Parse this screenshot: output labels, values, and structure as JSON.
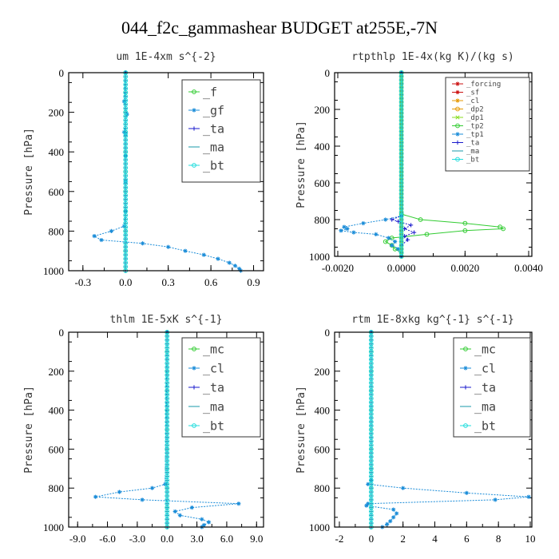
{
  "suptitle": "044_f2c_gammashear  BUDGET at255E,-7N",
  "colors": {
    "green": "#33cc33",
    "blue": "#1a8cd8",
    "red": "#cc1111",
    "darkblue": "#1a1acc",
    "cyan": "#22dddd",
    "teal": "#1a9aaa",
    "orange": "#e69900",
    "lime": "#88dd22"
  },
  "chart_data": [
    {
      "type": "line",
      "title": "um   1E-4xm s^{-2}",
      "xlabel": "",
      "ylabel": "Pressure [hPa]",
      "xlim": [
        -0.4,
        0.97
      ],
      "ylim": [
        1000,
        0
      ],
      "xticks": [
        -0.3,
        0.0,
        0.3,
        0.6,
        0.9
      ],
      "xtick_labels": [
        "-0.3",
        "0.0",
        "0.3",
        "0.6",
        "0.9"
      ],
      "yticks": [
        0,
        200,
        400,
        600,
        800,
        1000
      ],
      "ytick_labels": [
        "0",
        "200",
        "400",
        "600",
        "800",
        "1000"
      ],
      "legend": {
        "placement": "top-right",
        "font": 15,
        "entries": [
          "_f",
          "_gf",
          "_ta",
          "_ma",
          "_bt"
        ]
      },
      "series": [
        {
          "name": "_f",
          "color": "green",
          "marker": "o",
          "p": [
            0,
            100,
            200,
            300,
            400,
            500,
            600,
            700,
            800,
            900,
            1000
          ],
          "x": [
            0,
            0,
            0,
            0,
            0,
            0,
            0,
            0,
            0,
            0,
            0
          ]
        },
        {
          "name": "_gf",
          "color": "blue",
          "marker": "*",
          "p": [
            0,
            145,
            210,
            300,
            310,
            420,
            550,
            700,
            775,
            800,
            825,
            845,
            862,
            880,
            900,
            920,
            940,
            960,
            975,
            990,
            1000
          ],
          "x": [
            0,
            -0.01,
            0.01,
            -0.01,
            0,
            0,
            0,
            0,
            -0.01,
            -0.1,
            -0.22,
            -0.17,
            0.12,
            0.3,
            0.42,
            0.55,
            0.65,
            0.73,
            0.77,
            0.8,
            0.81
          ]
        },
        {
          "name": "_ta",
          "color": "darkblue",
          "marker": "+",
          "p": [
            0,
            500,
            1000
          ],
          "x": [
            0,
            0,
            0
          ]
        },
        {
          "name": "_ma",
          "color": "teal",
          "marker": "-",
          "p": [
            0,
            500,
            1000
          ],
          "x": [
            0,
            0,
            0
          ]
        },
        {
          "name": "_bt",
          "color": "cyan",
          "marker": "o",
          "p": [
            0,
            500,
            1000
          ],
          "x": [
            0,
            0,
            0
          ]
        }
      ]
    },
    {
      "type": "line",
      "title": "rtpthlp   1E-4x(kg K)/(kg s)",
      "xlabel": "",
      "ylabel": "Pressure [hPa]",
      "xlim": [
        -0.0021,
        0.0041
      ],
      "ylim": [
        1000,
        0
      ],
      "xticks": [
        -0.002,
        0.0,
        0.002,
        0.004
      ],
      "xtick_labels": [
        "-0.0020",
        "0.0000",
        "0.0020",
        "0.0040"
      ],
      "yticks": [
        0,
        200,
        400,
        600,
        800,
        1000
      ],
      "ytick_labels": [
        "0",
        "200",
        "400",
        "600",
        "800",
        "1000"
      ],
      "legend": {
        "placement": "top-right",
        "font": 9,
        "entries": [
          "_forcing",
          "_sf",
          "_cl",
          "_dp2",
          "_dp1",
          "_tp2",
          "_tp1",
          "_ta",
          "_ma",
          "_bt"
        ]
      },
      "series": [
        {
          "name": "_forcing",
          "color": "red",
          "marker": "*",
          "p": [
            0,
            500,
            1000
          ],
          "x": [
            0,
            0,
            0
          ]
        },
        {
          "name": "_sf",
          "color": "red",
          "marker": "*",
          "p": [
            0,
            500,
            1000
          ],
          "x": [
            0,
            0,
            0
          ]
        },
        {
          "name": "_cl",
          "color": "orange",
          "marker": "*",
          "p": [
            0,
            500,
            1000
          ],
          "x": [
            0,
            0,
            0
          ]
        },
        {
          "name": "_dp2",
          "color": "orange",
          "marker": "o",
          "p": [
            0,
            500,
            1000
          ],
          "x": [
            0,
            0,
            0
          ]
        },
        {
          "name": "_dp1",
          "color": "lime",
          "marker": "x",
          "p": [
            0,
            500,
            1000
          ],
          "x": [
            0,
            0,
            0
          ]
        },
        {
          "name": "_tp2",
          "color": "green",
          "marker": "o",
          "p": [
            0,
            770,
            800,
            820,
            840,
            850,
            860,
            880,
            900,
            920,
            940,
            960,
            980,
            1000
          ],
          "x": [
            0,
            0,
            0.0006,
            0.002,
            0.0031,
            0.0032,
            0.002,
            0.0008,
            -0.0003,
            -0.0005,
            -0.0003,
            -0.0002,
            0,
            0
          ]
        },
        {
          "name": "_tp1",
          "color": "blue",
          "marker": "*",
          "p": [
            0,
            780,
            800,
            820,
            840,
            850,
            860,
            870,
            880,
            900,
            920,
            940,
            960,
            1000
          ],
          "x": [
            0,
            0,
            -0.0005,
            -0.0012,
            -0.0018,
            -0.0017,
            -0.0019,
            -0.0015,
            -0.0008,
            -0.0004,
            -0.0002,
            -0.0003,
            -0.0001,
            0
          ]
        },
        {
          "name": "_ta",
          "color": "darkblue",
          "marker": "+",
          "p": [
            0,
            780,
            800,
            810,
            830,
            850,
            870,
            890,
            910,
            940,
            1000
          ],
          "x": [
            0,
            0,
            -0.0003,
            -0.0001,
            0.0003,
            0.0001,
            0.0004,
            0.0001,
            0.0002,
            0,
            0
          ]
        },
        {
          "name": "_ma",
          "color": "teal",
          "marker": "-",
          "p": [
            0,
            500,
            1000
          ],
          "x": [
            0,
            0,
            0
          ]
        },
        {
          "name": "_bt",
          "color": "cyan",
          "marker": "o",
          "p": [
            0,
            500,
            1000
          ],
          "x": [
            0,
            0,
            0
          ]
        }
      ]
    },
    {
      "type": "line",
      "title": "thlm   1E-5xK s^{-1}",
      "xlabel": "",
      "ylabel": "Pressure [hPa]",
      "xlim": [
        -9.9,
        9.7
      ],
      "ylim": [
        1000,
        0
      ],
      "xticks": [
        -9,
        -6,
        -3,
        0,
        3,
        6,
        9
      ],
      "xtick_labels": [
        "-9.0",
        "-6.0",
        "-3.0",
        "0.0",
        "3.0",
        "6.0",
        "9.0"
      ],
      "yticks": [
        0,
        200,
        400,
        600,
        800,
        1000
      ],
      "ytick_labels": [
        "0",
        "200",
        "400",
        "600",
        "800",
        "1000"
      ],
      "legend": {
        "placement": "top-right",
        "font": 15,
        "entries": [
          "_mc",
          "_cl",
          "_ta",
          "_ma",
          "_bt"
        ]
      },
      "series": [
        {
          "name": "_mc",
          "color": "green",
          "marker": "o",
          "p": [
            0,
            100,
            200,
            300,
            400,
            500,
            600,
            700,
            800,
            900,
            1000
          ],
          "x": [
            0,
            0,
            0,
            0,
            0,
            0,
            0,
            0,
            0,
            0,
            0
          ]
        },
        {
          "name": "_cl",
          "color": "blue",
          "marker": "*",
          "p": [
            0,
            780,
            800,
            820,
            845,
            860,
            880,
            900,
            920,
            940,
            960,
            975,
            990,
            1000
          ],
          "x": [
            0,
            -0.2,
            -1.5,
            -4.8,
            -7.2,
            -2.5,
            7.2,
            2.5,
            0.8,
            1.3,
            3.5,
            4.2,
            3.7,
            3.5
          ]
        },
        {
          "name": "_ta",
          "color": "darkblue",
          "marker": "+",
          "p": [
            0,
            500,
            1000
          ],
          "x": [
            0,
            0,
            0
          ]
        },
        {
          "name": "_ma",
          "color": "teal",
          "marker": "-",
          "p": [
            0,
            500,
            1000
          ],
          "x": [
            0,
            0,
            0
          ]
        },
        {
          "name": "_bt",
          "color": "cyan",
          "marker": "o",
          "p": [
            0,
            500,
            1000
          ],
          "x": [
            0,
            0,
            0
          ]
        }
      ]
    },
    {
      "type": "line",
      "title": "rtm   1E-8xkg kg^{-1} s^{-1}",
      "xlabel": "",
      "ylabel": "Pressure [hPa]",
      "xlim": [
        -2.3,
        10.1
      ],
      "ylim": [
        1000,
        0
      ],
      "xticks": [
        -2,
        0,
        2,
        4,
        6,
        8,
        10
      ],
      "xtick_labels": [
        "-2",
        "0",
        "2",
        "4",
        "6",
        "8",
        "10"
      ],
      "yticks": [
        0,
        200,
        400,
        600,
        800,
        1000
      ],
      "ytick_labels": [
        "0",
        "200",
        "400",
        "600",
        "800",
        "1000"
      ],
      "legend": {
        "placement": "top-right",
        "font": 15,
        "entries": [
          "_mc",
          "_cl",
          "_ta",
          "_ma",
          "_bt"
        ]
      },
      "series": [
        {
          "name": "_mc",
          "color": "green",
          "marker": "o",
          "p": [
            0,
            100,
            200,
            300,
            400,
            500,
            600,
            700,
            800,
            900,
            1000
          ],
          "x": [
            0,
            0,
            0,
            0,
            0,
            0,
            0,
            0,
            0,
            0,
            0
          ]
        },
        {
          "name": "_cl",
          "color": "blue",
          "marker": "*",
          "p": [
            0,
            760,
            780,
            800,
            825,
            845,
            860,
            880,
            890,
            910,
            930,
            950,
            970,
            985,
            1000
          ],
          "x": [
            0,
            0,
            -0.2,
            2,
            6,
            9.9,
            7.8,
            -0.2,
            -0.3,
            1.4,
            1.6,
            1.4,
            1.2,
            1,
            0.7
          ]
        },
        {
          "name": "_ta",
          "color": "darkblue",
          "marker": "+",
          "p": [
            0,
            500,
            1000
          ],
          "x": [
            0,
            0,
            0
          ]
        },
        {
          "name": "_ma",
          "color": "teal",
          "marker": "-",
          "p": [
            0,
            500,
            1000
          ],
          "x": [
            0,
            0,
            0
          ]
        },
        {
          "name": "_bt",
          "color": "cyan",
          "marker": "o",
          "p": [
            0,
            500,
            1000
          ],
          "x": [
            0,
            0,
            0
          ]
        }
      ]
    }
  ]
}
